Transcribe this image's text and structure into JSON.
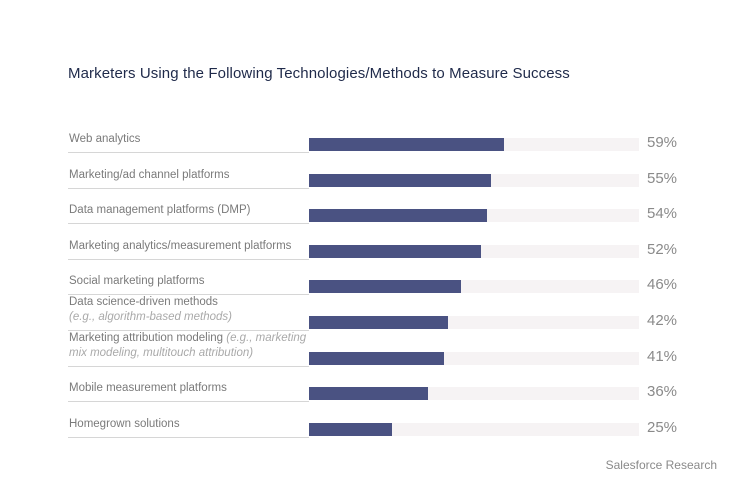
{
  "chart_data": {
    "type": "bar",
    "orientation": "horizontal",
    "title": "Marketers Using the Following Technologies/Methods to Measure Success",
    "categories": [
      {
        "label": "Web analytics",
        "note": ""
      },
      {
        "label": "Marketing/ad channel platforms",
        "note": ""
      },
      {
        "label": "Data management platforms (DMP)",
        "note": ""
      },
      {
        "label": "Marketing analytics/measurement platforms",
        "note": ""
      },
      {
        "label": "Social marketing platforms",
        "note": ""
      },
      {
        "label": "Data science-driven methods",
        "note": "(e.g., algorithm-based methods)"
      },
      {
        "label": "Marketing attribution modeling",
        "note": "(e.g., marketing mix modeling, multitouch attribution)"
      },
      {
        "label": "Mobile measurement platforms",
        "note": ""
      },
      {
        "label": "Homegrown solutions",
        "note": ""
      }
    ],
    "values": [
      59,
      55,
      54,
      52,
      46,
      42,
      41,
      36,
      25
    ],
    "value_labels": [
      "59%",
      "55%",
      "54%",
      "52%",
      "46%",
      "42%",
      "41%",
      "36%",
      "25%"
    ],
    "xlim": [
      0,
      100
    ],
    "grid": false,
    "colors": {
      "bar": "#4a5282",
      "track": "#f6f3f4"
    }
  },
  "source": "Salesforce Research"
}
